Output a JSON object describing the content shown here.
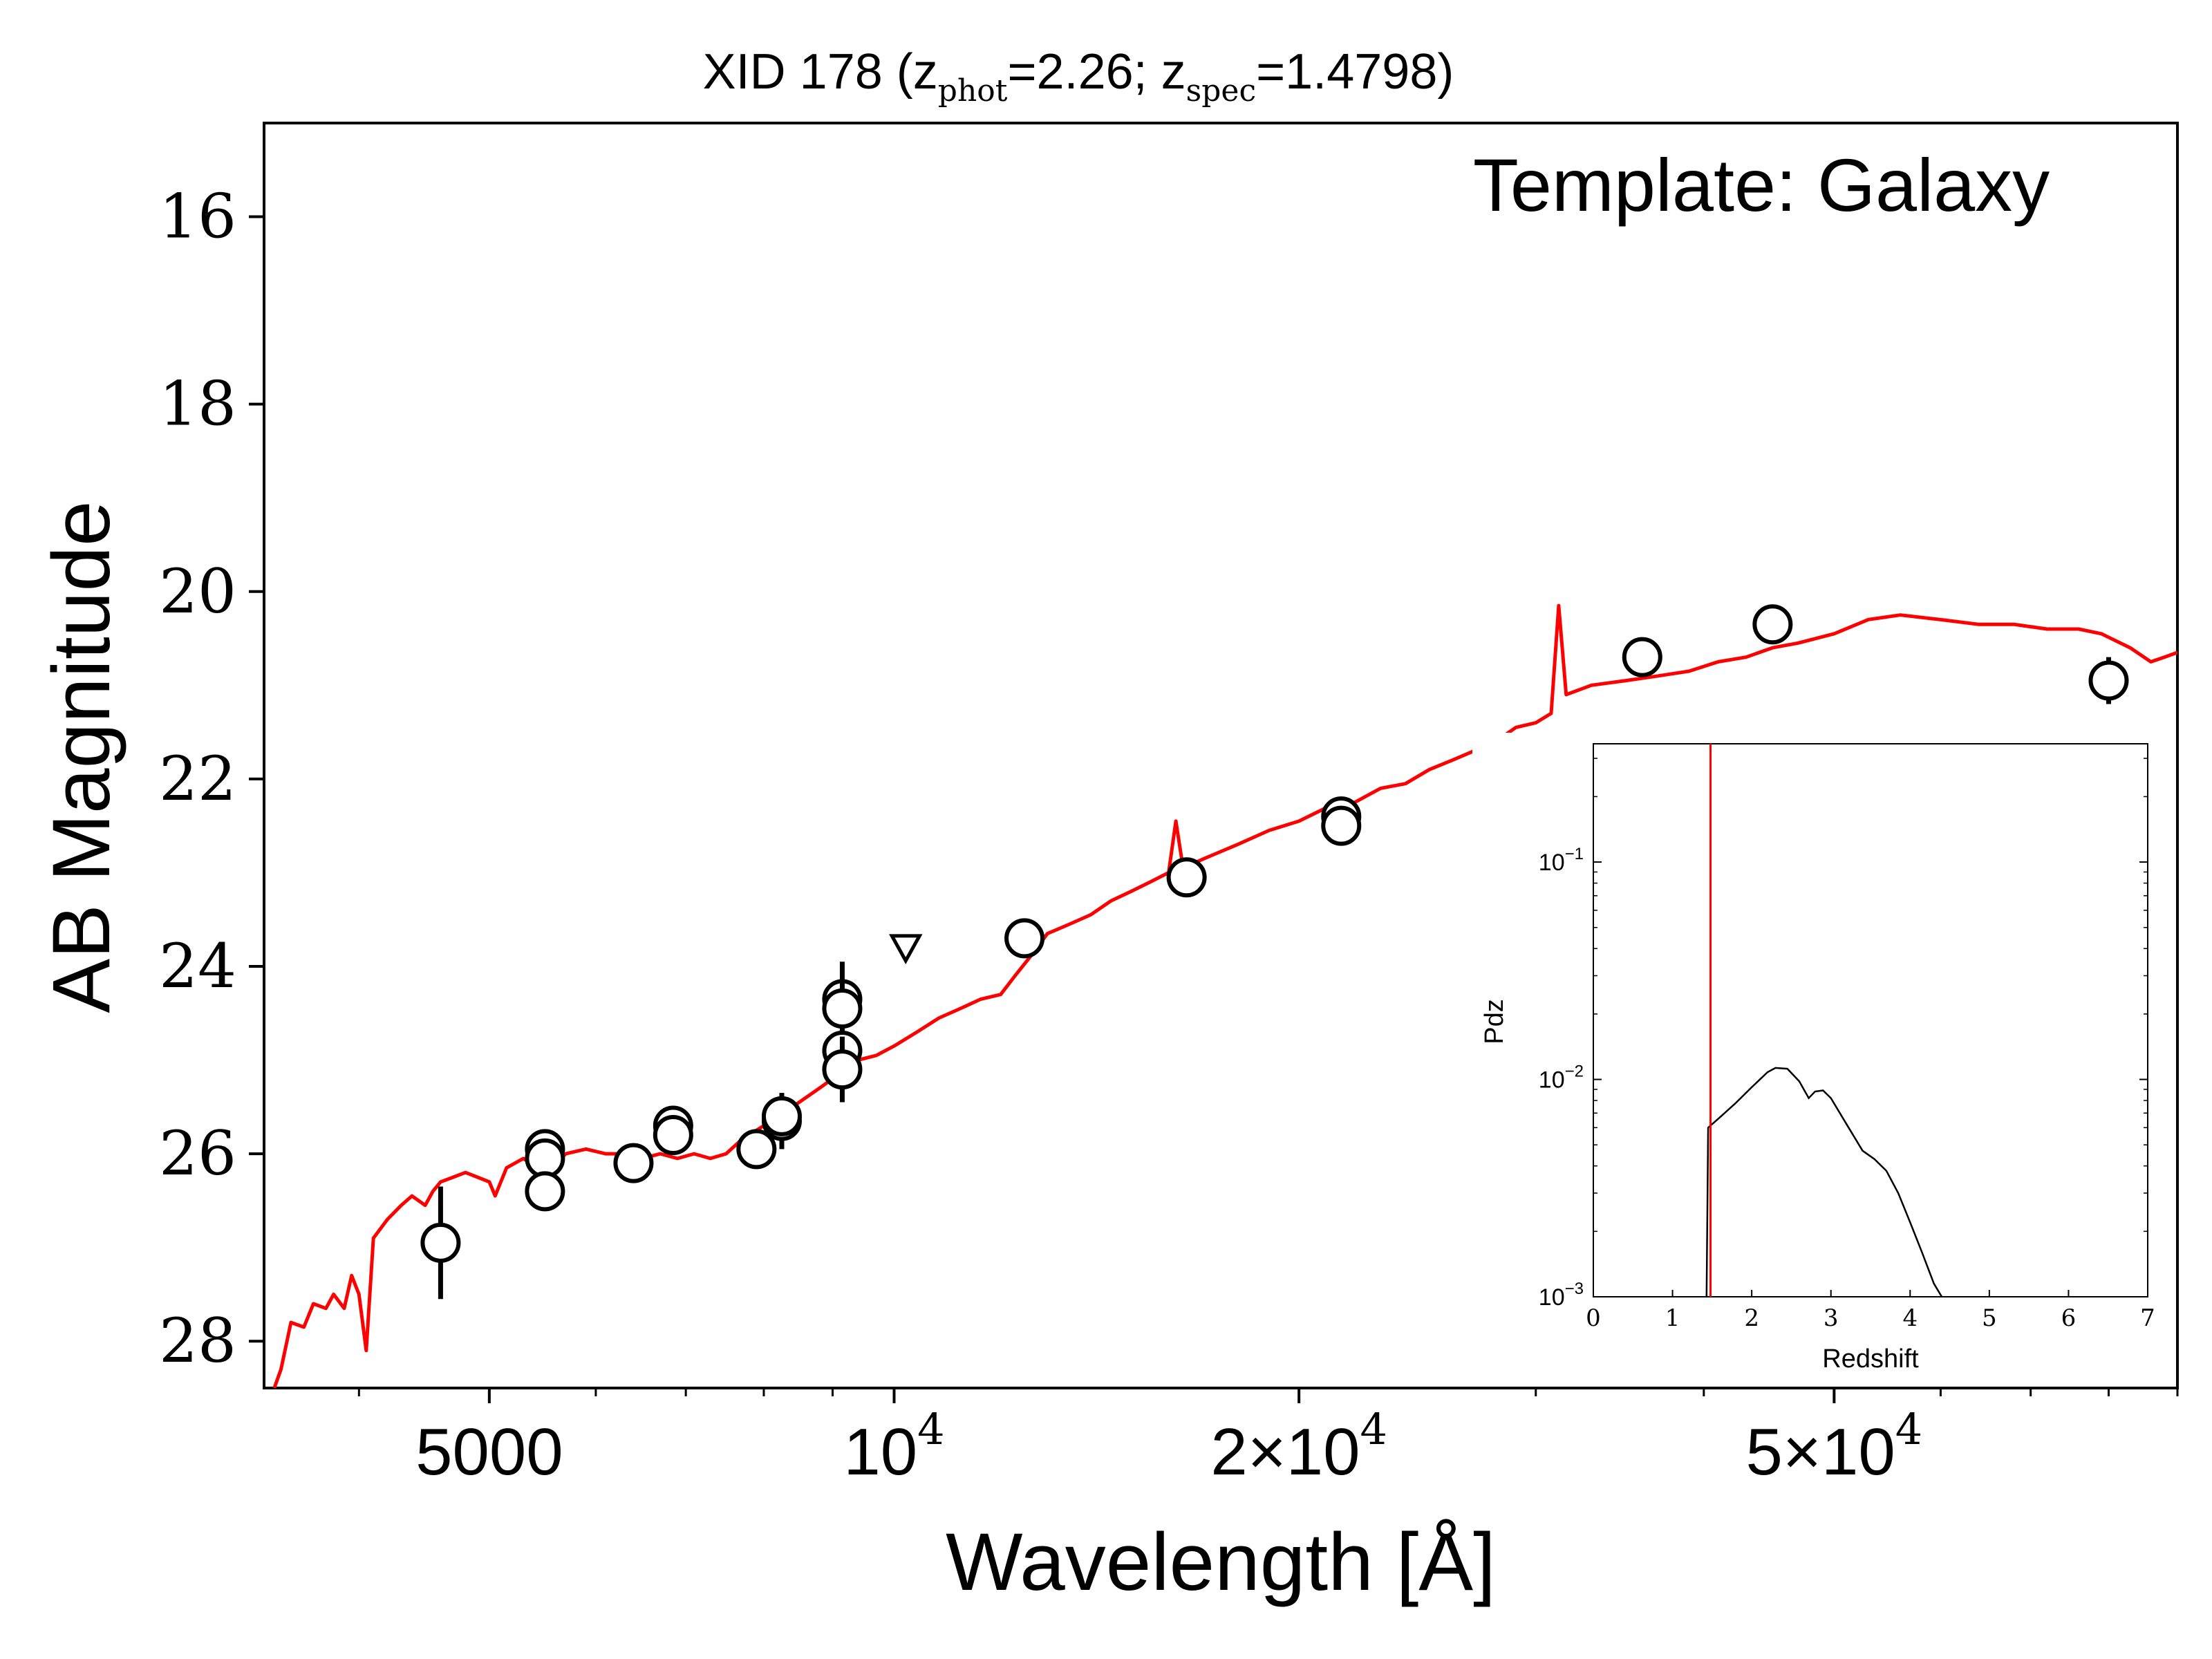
{
  "chart_data": [
    {
      "type": "scatter",
      "title": {
        "prefix": "XID 178 (z",
        "sub1": "phot",
        "mid": "=2.26; z",
        "sub2": "spec",
        "suffix": "=1.4798)"
      },
      "annotation": "Template: Galaxy",
      "xlabel": "Wavelength [Å]",
      "ylabel": "AB Magnitude",
      "xscale": "log",
      "xlim": [
        3400,
        90000
      ],
      "ylim": [
        28.5,
        15.0
      ],
      "yticks": [
        16,
        18,
        20,
        22,
        24,
        26,
        28
      ],
      "xticks": [
        {
          "value": 5000,
          "label": "5000",
          "sup": ""
        },
        {
          "value": 10000,
          "label": "10",
          "sup": "4"
        },
        {
          "value": 20000,
          "label": "2×10",
          "sup": "4"
        },
        {
          "value": 50000,
          "label": "5×10",
          "sup": "4"
        }
      ],
      "colors": {
        "model": "#ff0000",
        "points": "#000000",
        "frame": "#000000"
      },
      "series": [
        {
          "kind": "model_sed",
          "points": [
            [
              3460,
              28.5
            ],
            [
              3500,
              28.3
            ],
            [
              3560,
              27.8
            ],
            [
              3640,
              27.85
            ],
            [
              3700,
              27.6
            ],
            [
              3780,
              27.65
            ],
            [
              3830,
              27.5
            ],
            [
              3900,
              27.65
            ],
            [
              3950,
              27.3
            ],
            [
              4000,
              27.5
            ],
            [
              4050,
              28.1
            ],
            [
              4100,
              26.9
            ],
            [
              4200,
              26.7
            ],
            [
              4300,
              26.55
            ],
            [
              4380,
              26.45
            ],
            [
              4480,
              26.55
            ],
            [
              4540,
              26.4
            ],
            [
              4600,
              26.3
            ],
            [
              4700,
              26.25
            ],
            [
              4800,
              26.2
            ],
            [
              4900,
              26.25
            ],
            [
              5000,
              26.3
            ],
            [
              5050,
              26.45
            ],
            [
              5150,
              26.15
            ],
            [
              5300,
              26.05
            ],
            [
              5500,
              26.2
            ],
            [
              5700,
              26.0
            ],
            [
              5900,
              25.95
            ],
            [
              6100,
              26.0
            ],
            [
              6300,
              26.0
            ],
            [
              6500,
              26.05
            ],
            [
              6700,
              26.0
            ],
            [
              6900,
              26.05
            ],
            [
              7100,
              26.0
            ],
            [
              7300,
              26.05
            ],
            [
              7500,
              26.0
            ],
            [
              7700,
              25.85
            ],
            [
              7900,
              25.75
            ],
            [
              8100,
              25.65
            ],
            [
              8300,
              25.55
            ],
            [
              8500,
              25.45
            ],
            [
              8800,
              25.3
            ],
            [
              9100,
              25.15
            ],
            [
              9400,
              25.0
            ],
            [
              9700,
              24.95
            ],
            [
              10000,
              24.85
            ],
            [
              10400,
              24.7
            ],
            [
              10800,
              24.55
            ],
            [
              11200,
              24.45
            ],
            [
              11600,
              24.35
            ],
            [
              12000,
              24.3
            ],
            [
              12300,
              24.1
            ],
            [
              12700,
              23.85
            ],
            [
              13000,
              23.65
            ],
            [
              13500,
              23.55
            ],
            [
              14000,
              23.45
            ],
            [
              14500,
              23.3
            ],
            [
              15000,
              23.2
            ],
            [
              15500,
              23.1
            ],
            [
              16000,
              23.0
            ],
            [
              16200,
              22.45
            ],
            [
              16400,
              22.95
            ],
            [
              17000,
              22.85
            ],
            [
              18000,
              22.7
            ],
            [
              19000,
              22.55
            ],
            [
              20000,
              22.45
            ],
            [
              21000,
              22.3
            ],
            [
              22000,
              22.25
            ],
            [
              23000,
              22.1
            ],
            [
              24000,
              22.05
            ],
            [
              25000,
              21.9
            ],
            [
              26000,
              21.8
            ],
            [
              27000,
              21.7
            ],
            [
              28000,
              21.6
            ],
            [
              29000,
              21.45
            ],
            [
              30000,
              21.4
            ],
            [
              30800,
              21.3
            ],
            [
              31200,
              20.15
            ],
            [
              31600,
              21.1
            ],
            [
              33000,
              21.0
            ],
            [
              35000,
              20.95
            ],
            [
              37000,
              20.9
            ],
            [
              39000,
              20.85
            ],
            [
              41000,
              20.75
            ],
            [
              43000,
              20.7
            ],
            [
              45000,
              20.6
            ],
            [
              47000,
              20.55
            ],
            [
              50000,
              20.45
            ],
            [
              53000,
              20.3
            ],
            [
              56000,
              20.25
            ],
            [
              60000,
              20.3
            ],
            [
              64000,
              20.35
            ],
            [
              68000,
              20.35
            ],
            [
              72000,
              20.4
            ],
            [
              76000,
              20.4
            ],
            [
              79000,
              20.45
            ],
            [
              83000,
              20.6
            ],
            [
              86000,
              20.75
            ],
            [
              88000,
              20.7
            ],
            [
              90000,
              20.65
            ]
          ]
        },
        {
          "kind": "photometry",
          "points": [
            {
              "x": 4600,
              "y": 26.95,
              "err": 0.6
            },
            {
              "x": 5500,
              "y": 25.95,
              "err": 0.15
            },
            {
              "x": 5500,
              "y": 26.05,
              "err": 0.15
            },
            {
              "x": 5500,
              "y": 26.4,
              "err": 0.2
            },
            {
              "x": 6400,
              "y": 26.1,
              "err": 0.1
            },
            {
              "x": 6850,
              "y": 25.7,
              "err": 0.1
            },
            {
              "x": 6850,
              "y": 25.8,
              "err": 0.15
            },
            {
              "x": 7900,
              "y": 25.95,
              "err": 0.2
            },
            {
              "x": 8250,
              "y": 25.65,
              "err": 0.3
            },
            {
              "x": 8250,
              "y": 25.6,
              "err": 0.2
            },
            {
              "x": 9150,
              "y": 24.35,
              "err": 0.4
            },
            {
              "x": 9150,
              "y": 24.45,
              "err": 0.3
            },
            {
              "x": 9150,
              "y": 24.9,
              "err": 0.25
            },
            {
              "x": 9150,
              "y": 25.1,
              "err": 0.35
            },
            {
              "x": 12500,
              "y": 23.7,
              "err": 0.1
            },
            {
              "x": 16500,
              "y": 23.05,
              "err": 0.1
            },
            {
              "x": 21500,
              "y": 22.4,
              "err": 0.15
            },
            {
              "x": 21500,
              "y": 22.5,
              "err": 0.2
            },
            {
              "x": 36000,
              "y": 20.7,
              "err": 0.1
            },
            {
              "x": 45000,
              "y": 20.35,
              "err": 0.1
            },
            {
              "x": 80000,
              "y": 20.95,
              "err": 0.25
            }
          ]
        },
        {
          "kind": "upper_limit",
          "points": [
            {
              "x": 10200,
              "y": 23.8
            }
          ]
        }
      ]
    },
    {
      "type": "line",
      "role": "inset",
      "xlabel": "Redshift",
      "ylabel": "Pdz",
      "xlim": [
        0,
        7
      ],
      "ylim": [
        0.001,
        0.35
      ],
      "yscale": "log",
      "xticks": [
        "0",
        "1",
        "2",
        "3",
        "4",
        "5",
        "6",
        "7"
      ],
      "yticks": [
        {
          "value": 0.1,
          "base": "10",
          "sup": "−1"
        },
        {
          "value": 0.01,
          "base": "10",
          "sup": "−2"
        },
        {
          "value": 0.001,
          "base": "10",
          "sup": "−3"
        }
      ],
      "zspec_line": 1.4798,
      "colors": {
        "pdz": "#000000",
        "zspec": "#ff0000"
      },
      "series": [
        {
          "points": [
            [
              1.43,
              0.001
            ],
            [
              1.45,
              0.006
            ],
            [
              1.6,
              0.0067
            ],
            [
              1.8,
              0.0078
            ],
            [
              2.0,
              0.0092
            ],
            [
              2.2,
              0.0108
            ],
            [
              2.3,
              0.0113
            ],
            [
              2.45,
              0.0112
            ],
            [
              2.6,
              0.0098
            ],
            [
              2.72,
              0.0082
            ],
            [
              2.8,
              0.0088
            ],
            [
              2.9,
              0.0089
            ],
            [
              3.0,
              0.0082
            ],
            [
              3.2,
              0.0062
            ],
            [
              3.4,
              0.0047
            ],
            [
              3.55,
              0.0043
            ],
            [
              3.7,
              0.0038
            ],
            [
              3.85,
              0.003
            ],
            [
              4.0,
              0.0022
            ],
            [
              4.15,
              0.0016
            ],
            [
              4.3,
              0.00115
            ],
            [
              4.4,
              0.001
            ]
          ]
        }
      ]
    }
  ]
}
